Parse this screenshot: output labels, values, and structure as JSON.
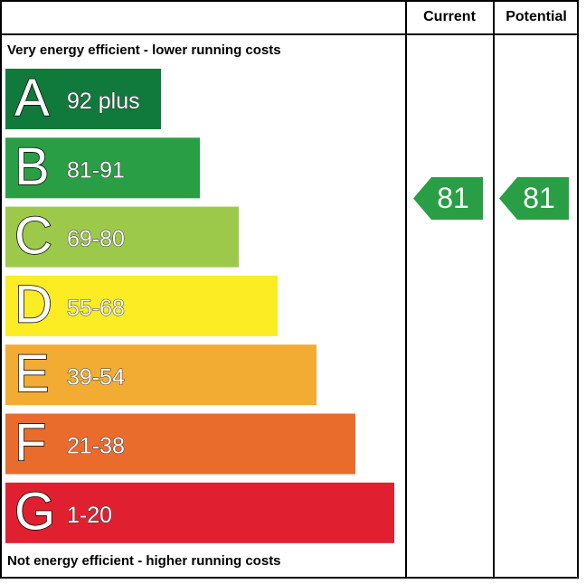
{
  "header": {
    "columns": [
      "Current",
      "Potential"
    ]
  },
  "top_label": "Very energy efficient - lower running costs",
  "bottom_label": "Not energy efficient - higher running costs",
  "bands": [
    {
      "letter": "A",
      "range": "92 plus",
      "color": "#0f7a3c"
    },
    {
      "letter": "B",
      "range": "81-91",
      "color": "#2a9e44"
    },
    {
      "letter": "C",
      "range": "69-80",
      "color": "#9dc94a"
    },
    {
      "letter": "D",
      "range": "55-68",
      "color": "#fbec24"
    },
    {
      "letter": "E",
      "range": "39-54",
      "color": "#f2ac33"
    },
    {
      "letter": "F",
      "range": "21-38",
      "color": "#ea6c2d"
    },
    {
      "letter": "G",
      "range": "1-20",
      "color": "#e02030"
    }
  ],
  "current": {
    "value": 81,
    "color": "#2a9e44"
  },
  "potential": {
    "value": 81,
    "color": "#2a9e44"
  }
}
